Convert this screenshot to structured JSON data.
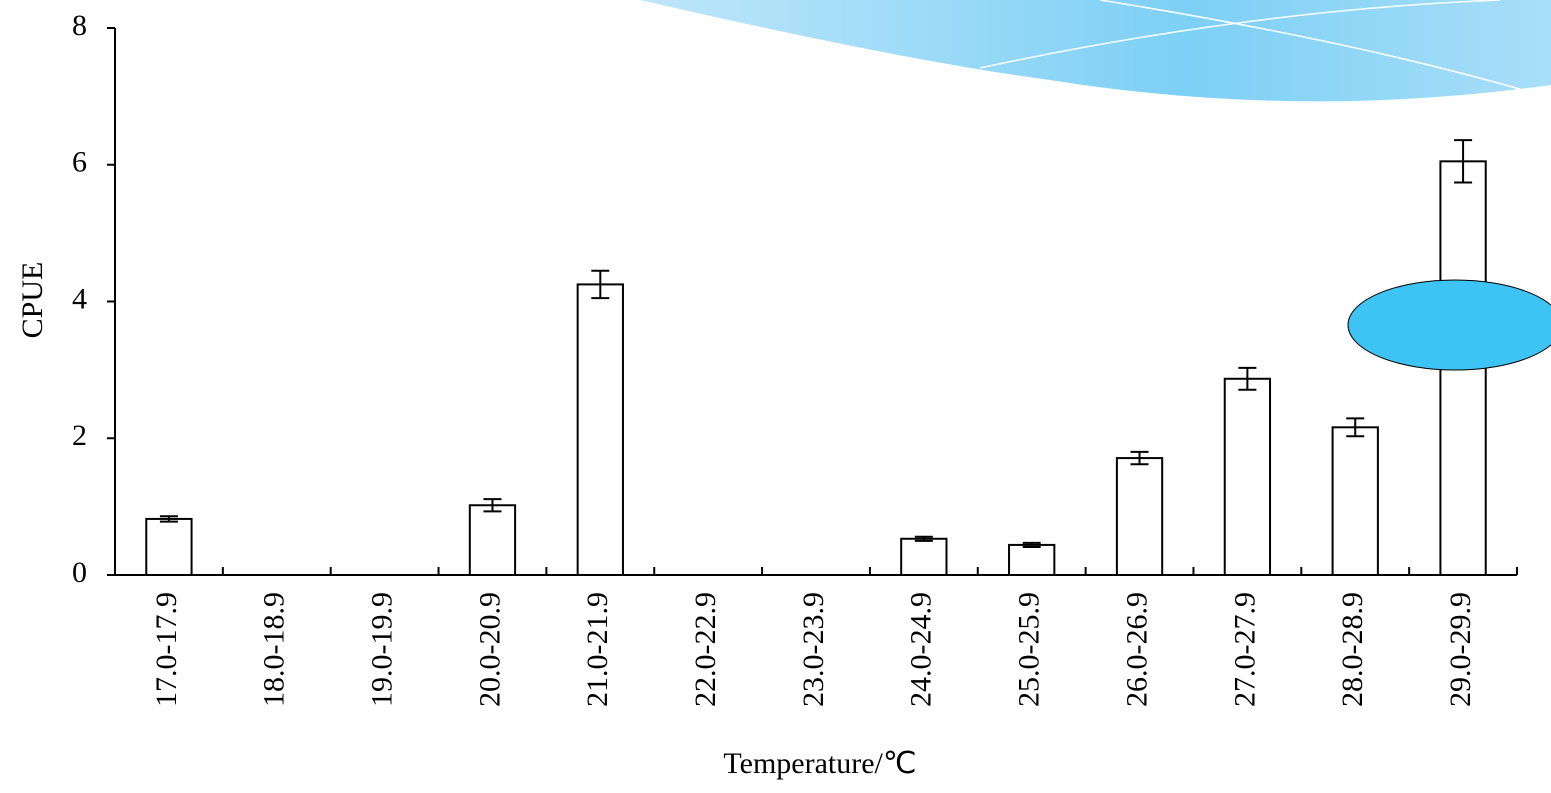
{
  "chart_data": {
    "type": "bar",
    "xlabel": "Temperature/℃",
    "ylabel": "CPUE",
    "categories": [
      "17.0-17.9",
      "18.0-18.9",
      "19.0-19.9",
      "20.0-20.9",
      "21.0-21.9",
      "22.0-22.9",
      "23.0-23.9",
      "24.0-24.9",
      "25.0-25.9",
      "26.0-26.9",
      "27.0-27.9",
      "28.0-28.9",
      "29.0-29.9"
    ],
    "values": [
      0.82,
      0,
      0,
      1.02,
      4.25,
      0,
      0,
      0.53,
      0.44,
      1.71,
      2.87,
      2.16,
      6.05
    ],
    "errors": [
      0.04,
      null,
      null,
      0.09,
      0.2,
      null,
      null,
      0.03,
      0.03,
      0.09,
      0.16,
      0.13,
      0.31
    ],
    "color": "#ffffff",
    "ylim": [
      0,
      8
    ],
    "yticks": [
      0,
      2,
      4,
      6,
      8
    ],
    "grid": false
  }
}
